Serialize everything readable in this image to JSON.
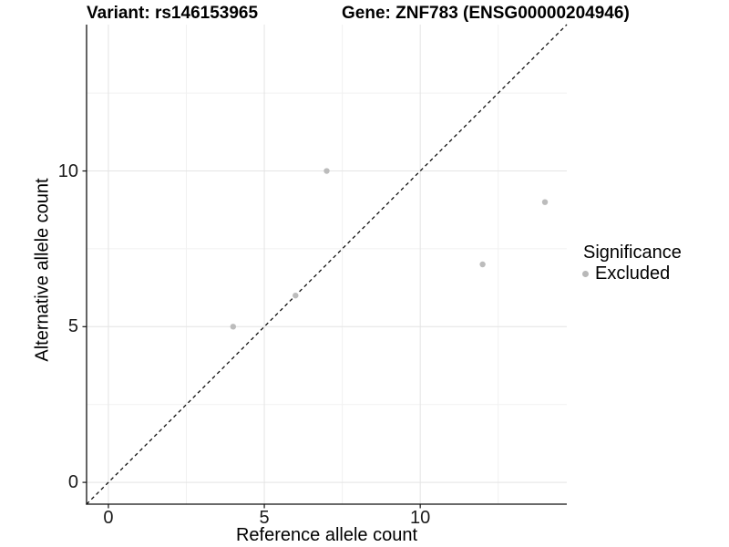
{
  "chart_data": {
    "type": "scatter",
    "titles": {
      "left": "Variant: rs146153965",
      "right": "Gene: ZNF783 (ENSG00000204946)"
    },
    "xlabel": "Reference allele count",
    "ylabel": "Alternative allele count",
    "x_ticks": [
      0,
      5,
      10
    ],
    "y_ticks": [
      0,
      5,
      10
    ],
    "x_range": [
      -0.7,
      14.7
    ],
    "y_range": [
      -0.7,
      14.7
    ],
    "grid": {
      "major": [
        0,
        5,
        10
      ],
      "minor": [
        2.5,
        7.5,
        12.5
      ],
      "visible": true
    },
    "series": [
      {
        "name": "Excluded",
        "color": "#bcbcbc",
        "points": [
          [
            4,
            5
          ],
          [
            6,
            6
          ],
          [
            7,
            10
          ],
          [
            12,
            7
          ],
          [
            14,
            9
          ]
        ]
      }
    ],
    "reference_line": {
      "equation": "y = x",
      "style": "dashed",
      "color": "#111111"
    },
    "legend": {
      "title": "Significance",
      "position": "right",
      "items": [
        {
          "label": "Excluded",
          "color": "#b8b8b8"
        }
      ]
    },
    "colors": {
      "grid_major": "#e4e4e4",
      "grid_minor": "#f1f1f1",
      "axis_line": "#111111",
      "tick_mark": "#111111",
      "point": "#bcbcbc"
    }
  }
}
